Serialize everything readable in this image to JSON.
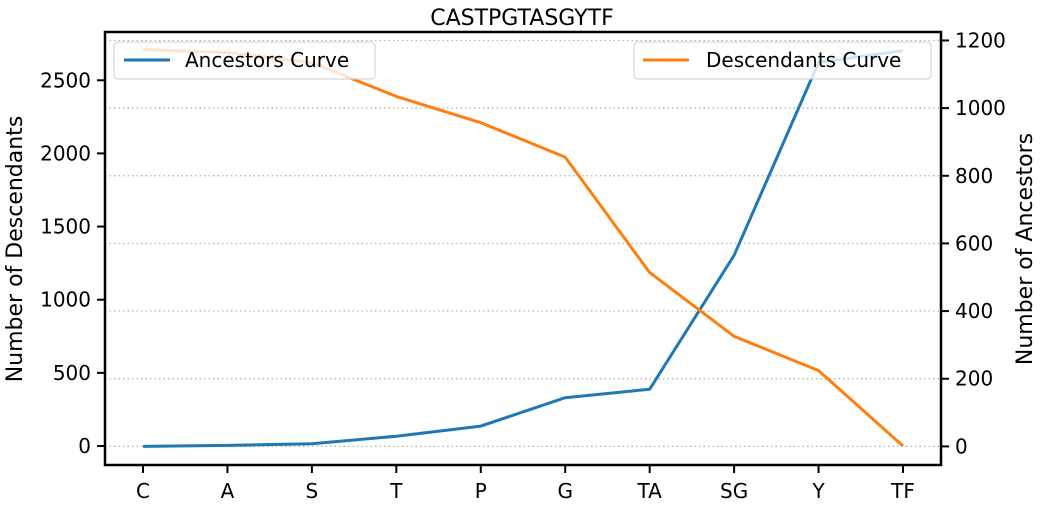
{
  "chart_data": {
    "type": "line",
    "title": "CASTPGTASGYTF",
    "categories": [
      "C",
      "A",
      "S",
      "T",
      "P",
      "G",
      "TA",
      "SG",
      "Y",
      "TF"
    ],
    "y_left": {
      "label": "Number of Descendants",
      "lim": [
        -130,
        2830
      ],
      "ticks": [
        0,
        500,
        1000,
        1500,
        2000,
        2500
      ]
    },
    "y_right": {
      "label": "Number of Ancestors",
      "lim": [
        -55,
        1225
      ],
      "ticks": [
        0,
        200,
        400,
        600,
        800,
        1000,
        1200
      ]
    },
    "series": [
      {
        "name": "Ancestors Curve",
        "axis": "right",
        "color": "#1f77b4",
        "values": [
          0,
          3,
          8,
          30,
          60,
          144,
          169,
          565,
          1135,
          1170
        ]
      },
      {
        "name": "Descendants Curve",
        "axis": "left",
        "color": "#ff7f0e",
        "values": [
          2710,
          2690,
          2620,
          2390,
          2210,
          1975,
          1185,
          750,
          515,
          0
        ]
      }
    ],
    "grid": {
      "axis": "y",
      "style": "dotted"
    },
    "legends": [
      {
        "series": "Ancestors Curve",
        "placement": "upper-left"
      },
      {
        "series": "Descendants Curve",
        "placement": "upper-right"
      }
    ]
  }
}
